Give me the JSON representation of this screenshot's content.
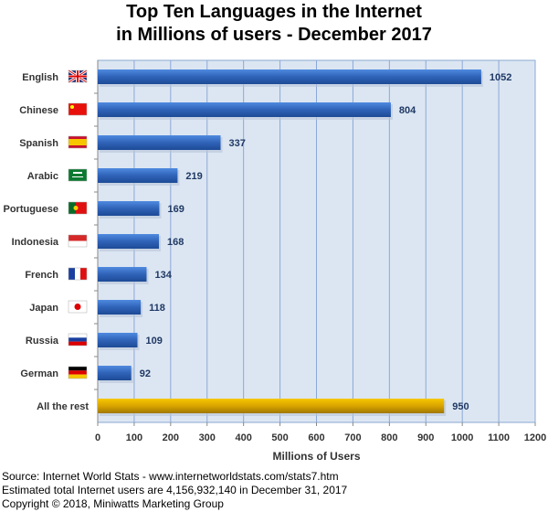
{
  "chart_data": {
    "type": "bar",
    "orientation": "horizontal",
    "title": "Top Ten Languages in the Internet",
    "subtitle": "in Millions of users - December 2017",
    "categories": [
      "English",
      "Chinese",
      "Spanish",
      "Arabic",
      "Portuguese",
      "Indonesia",
      "French",
      "Japan",
      "Russia",
      "German",
      "All the rest"
    ],
    "values": [
      1052,
      804,
      337,
      219,
      169,
      168,
      134,
      118,
      109,
      92,
      950
    ],
    "flags": [
      "uk",
      "china",
      "spain",
      "saudi",
      "portugal",
      "indonesia",
      "france",
      "japan",
      "russia",
      "germany",
      null
    ],
    "bar_colors": {
      "default": "#3a6fc4",
      "highlight": "#e8b400"
    },
    "xlabel": "Millions of Users",
    "ylabel": "",
    "xlim": [
      0,
      1200
    ],
    "xticks": [
      0,
      100,
      200,
      300,
      400,
      500,
      600,
      700,
      800,
      900,
      1000,
      1100,
      1200
    ],
    "grid": true,
    "background": "#dce6f2"
  },
  "footer": {
    "source": "Source: Internet World Stats - www.internetworldstats.com/stats7.htm",
    "estimate": "Estimated total Internet users are 4,156,932,140 in December 31, 2017",
    "copyright": "Copyright © 2018, Miniwatts Marketing Group"
  }
}
